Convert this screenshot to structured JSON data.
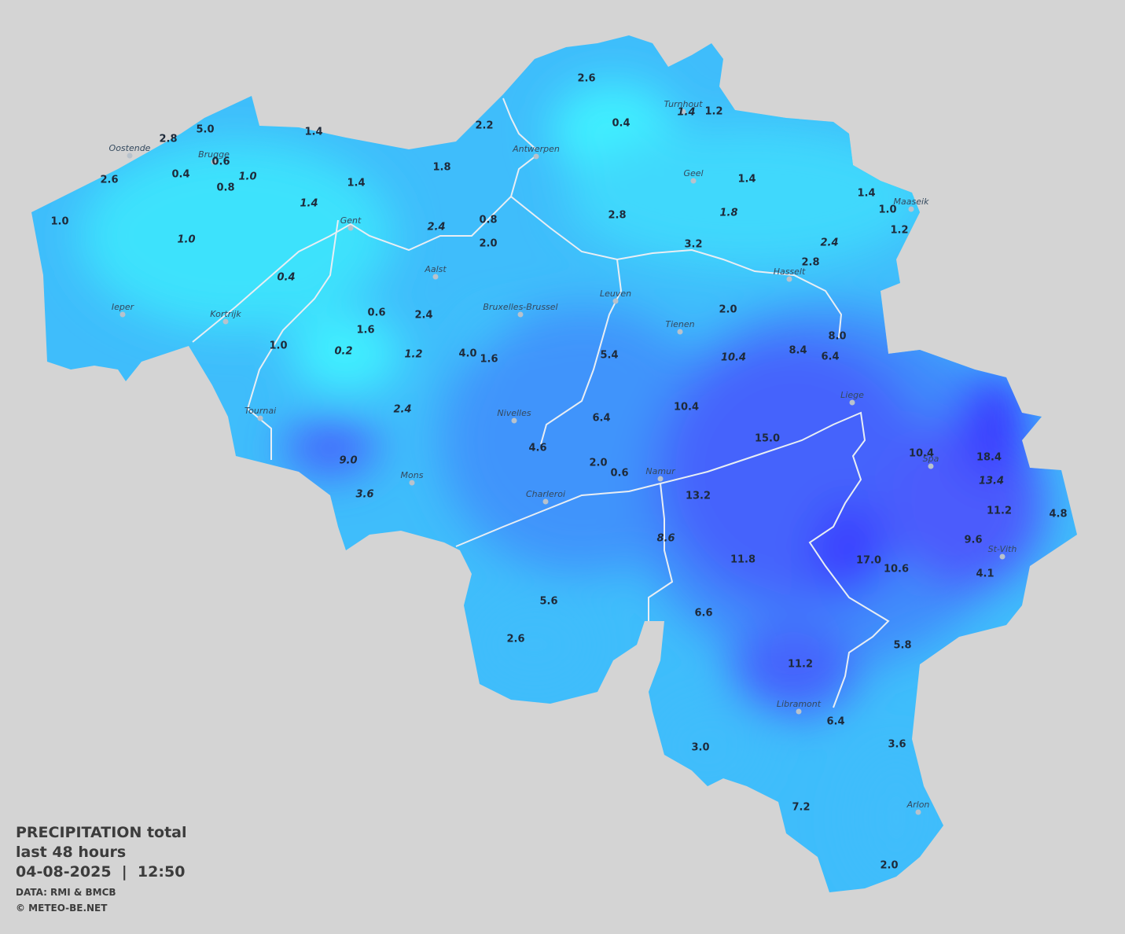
{
  "caption": {
    "title": "PRECIPITATION total",
    "period": "last 48 hours",
    "datetime": "04-08-2025  |  12:50",
    "source": "DATA: RMI & BMCB",
    "copyright": "© METEO-BE.NET"
  },
  "cities": [
    "Oostende",
    "Brugge",
    "Antwerpen",
    "Turnhout",
    "Geel",
    "Maaseik",
    "Gent",
    "Aalst",
    "Hasselt",
    "Ieper",
    "Bruxelles-Brussel",
    "Leuven",
    "Tienen",
    "Kortrijk",
    "Liege",
    "Tournai",
    "Nivelles",
    "Namur",
    "Spa",
    "Mons",
    "Charleroi",
    "St-Vith",
    "Libramont",
    "Arlon"
  ],
  "stations": [
    "2.6",
    "0.4",
    "1.4",
    "1.2",
    "2.2",
    "5.0",
    "2.8",
    "1.4",
    "0.6",
    "1.0",
    "0.4",
    "0.8",
    "2.6",
    "1.8",
    "1.4",
    "1.4",
    "1.4",
    "1.0",
    "1.2",
    "1.4",
    "2.4",
    "0.8",
    "2.8",
    "1.8",
    "1.0",
    "1.0",
    "2.0",
    "3.2",
    "2.4",
    "2.8",
    "0.4",
    "0.6",
    "2.4",
    "2.0",
    "1.6",
    "8.0",
    "1.0",
    "0.2",
    "1.2",
    "4.0",
    "1.6",
    "5.4",
    "10.4",
    "8.4",
    "6.4",
    "2.4",
    "10.4",
    "6.4",
    "15.0",
    "4.6",
    "2.0",
    "0.6",
    "10.4",
    "18.4",
    "9.0",
    "13.4",
    "3.6",
    "13.2",
    "11.2",
    "4.8",
    "8.6",
    "9.6",
    "11.8",
    "17.0",
    "10.6",
    "4.1",
    "5.6",
    "6.6",
    "2.6",
    "5.8",
    "11.2",
    "6.4",
    "3.0",
    "3.6",
    "7.2",
    "2.0"
  ]
}
